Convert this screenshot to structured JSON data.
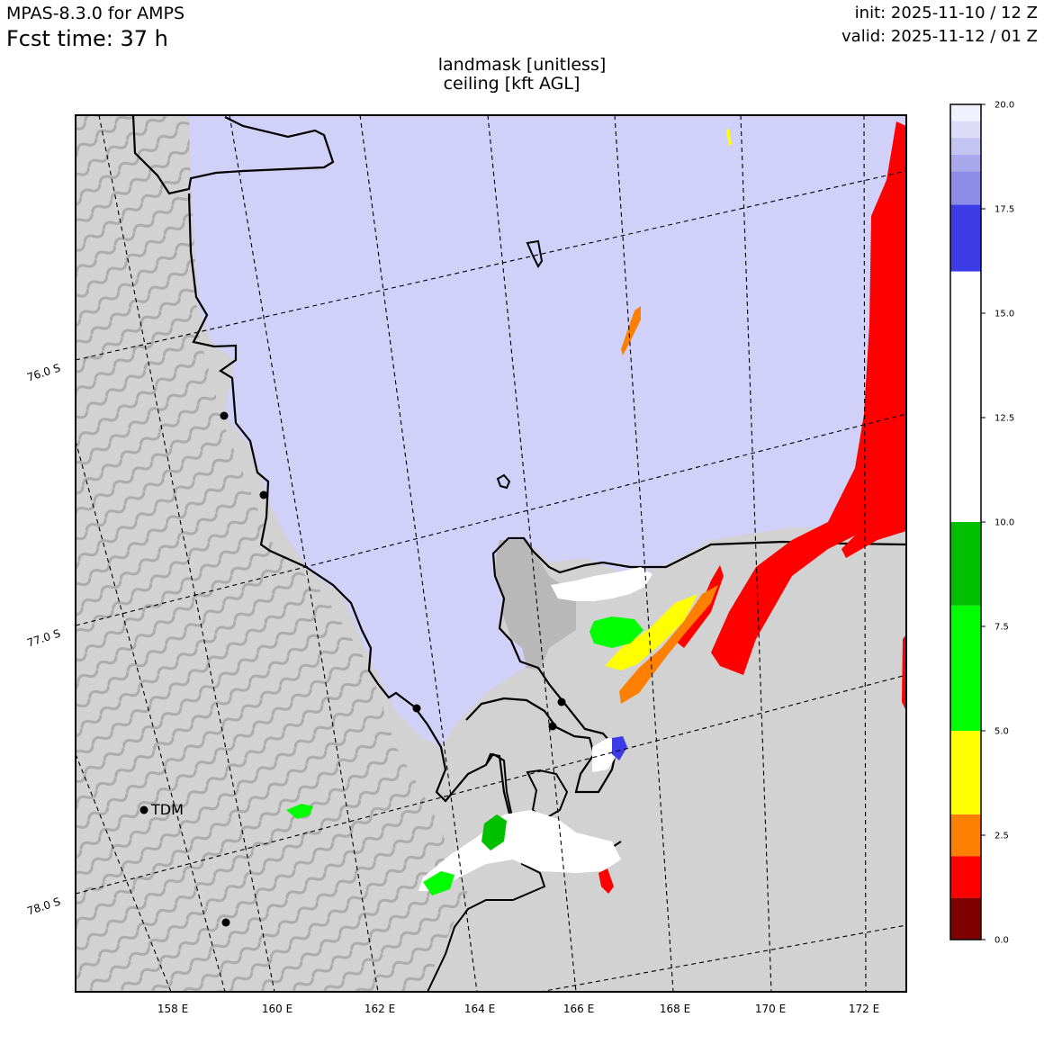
{
  "header": {
    "model": "MPAS-8.3.0 for AMPS",
    "fcst_time": "Fcst time:   37 h",
    "init": "init: 2025-11-10 / 12 Z",
    "valid": "valid: 2025-11-12 / 01 Z"
  },
  "titles": {
    "field1": "landmask [unitless]",
    "field2": "ceiling [kft AGL]"
  },
  "map": {
    "lon_ticks": [
      "158 E",
      "160 E",
      "162 E",
      "164 E",
      "166 E",
      "168 E",
      "170 E",
      "172 E"
    ],
    "lat_ticks": [
      "76.0 S",
      "77.0 S",
      "78.0 S"
    ],
    "station_label": "TDM",
    "land_color": "#d2d2d2",
    "ocean_color": "#d0d0f8"
  },
  "colorbar": {
    "ticks": [
      "0.0",
      "2.5",
      "5.0",
      "7.5",
      "10.0",
      "12.5",
      "15.0",
      "17.5",
      "20.0"
    ],
    "bands": [
      {
        "from": 0.0,
        "to": 1.0,
        "color": "#7f0000"
      },
      {
        "from": 1.0,
        "to": 2.0,
        "color": "#ff0000"
      },
      {
        "from": 2.0,
        "to": 3.0,
        "color": "#ff7f00"
      },
      {
        "from": 3.0,
        "to": 5.0,
        "color": "#ffff00"
      },
      {
        "from": 5.0,
        "to": 8.0,
        "color": "#00ff00"
      },
      {
        "from": 8.0,
        "to": 10.0,
        "color": "#00c000"
      },
      {
        "from": 10.0,
        "to": 16.0,
        "color": "#ffffff"
      },
      {
        "from": 16.0,
        "to": 17.6,
        "color": "#3c3ce6"
      },
      {
        "from": 17.6,
        "to": 18.4,
        "color": "#8c8ce6"
      },
      {
        "from": 18.4,
        "to": 18.8,
        "color": "#a8a8ea"
      },
      {
        "from": 18.8,
        "to": 19.2,
        "color": "#c4c4f2"
      },
      {
        "from": 19.2,
        "to": 19.6,
        "color": "#dcdcf8"
      },
      {
        "from": 19.6,
        "to": 20.0,
        "color": "#f0f0fe"
      }
    ]
  }
}
